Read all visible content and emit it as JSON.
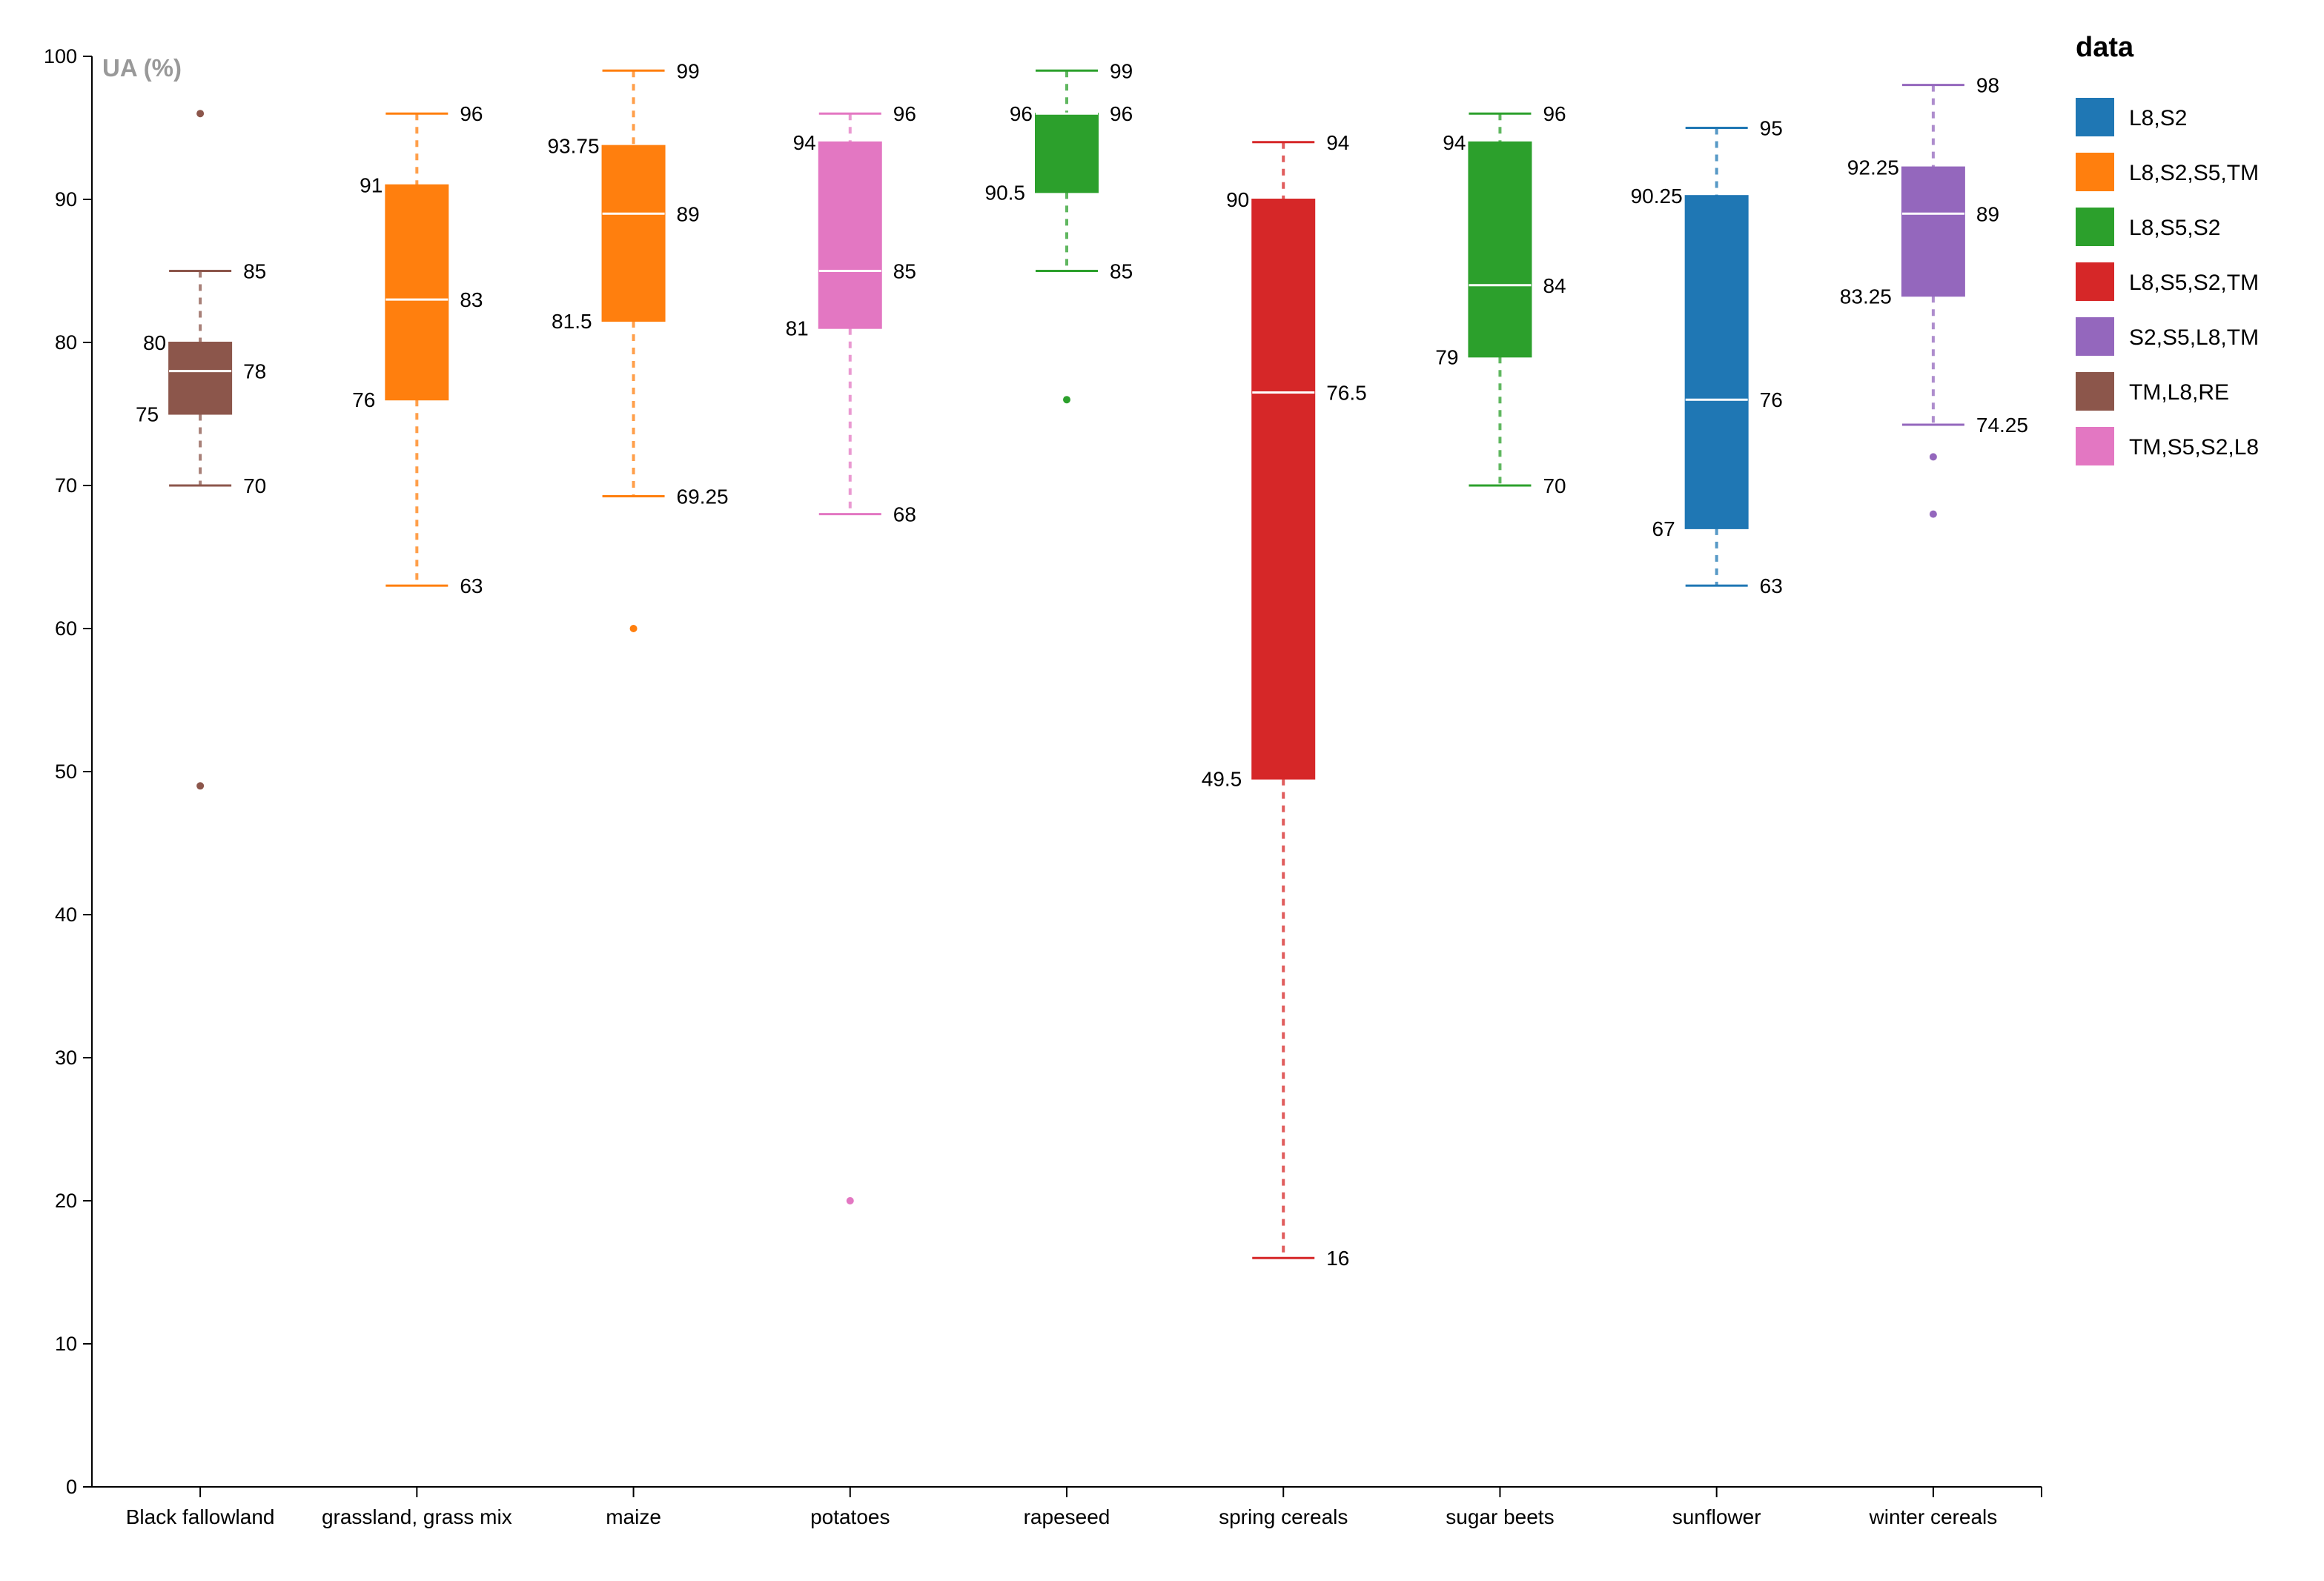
{
  "chart_data": {
    "type": "box",
    "ylabel": "UA (%)",
    "xlabel": "",
    "ylim": [
      0,
      100
    ],
    "yticks": [
      0,
      10,
      20,
      30,
      40,
      50,
      60,
      70,
      80,
      90,
      100
    ],
    "grid": false,
    "legend": {
      "title": "data",
      "position": "top-right",
      "entries": [
        {
          "label": "L8,S2",
          "color": "#1f77b4"
        },
        {
          "label": "L8,S2,S5,TM",
          "color": "#ff7f0e"
        },
        {
          "label": "L8,S5,S2",
          "color": "#2ca02c"
        },
        {
          "label": "L8,S5,S2,TM",
          "color": "#d62728"
        },
        {
          "label": "S2,S5,L8,TM",
          "color": "#9467bd"
        },
        {
          "label": "TM,L8,RE",
          "color": "#8c564b"
        },
        {
          "label": "TM,S5,S2,L8",
          "color": "#e377c2"
        }
      ]
    },
    "categories": [
      "Black fallowland",
      "grassland, grass mix",
      "maize",
      "potatoes",
      "rapeseed",
      "spring cereals",
      "sugar beets",
      "sunflower",
      "winter cereals"
    ],
    "boxes": [
      {
        "category": "Black fallowland",
        "series": "TM,L8,RE",
        "color": "#8c564b",
        "min": 70,
        "q1": 75,
        "median": 78,
        "q3": 80,
        "max": 85,
        "outliers": [
          96,
          49
        ],
        "labels": {
          "min": "70",
          "q1": "75",
          "median": "78",
          "q3": "80",
          "max": "85"
        }
      },
      {
        "category": "grassland, grass mix",
        "series": "L8,S2,S5,TM",
        "color": "#ff7f0e",
        "min": 63,
        "q1": 76,
        "median": 83,
        "q3": 91,
        "max": 96,
        "outliers": [],
        "labels": {
          "min": "63",
          "q1": "76",
          "median": "83",
          "q3": "91",
          "max": "96"
        }
      },
      {
        "category": "maize",
        "series": "L8,S2,S5,TM",
        "color": "#ff7f0e",
        "min": 69.25,
        "q1": 81.5,
        "median": 89,
        "q3": 93.75,
        "max": 99,
        "outliers": [
          60
        ],
        "labels": {
          "min": "69.25",
          "q1": "81.5",
          "median": "89",
          "q3": "93.75",
          "max": "99"
        }
      },
      {
        "category": "potatoes",
        "series": "TM,S5,S2,L8",
        "color": "#e377c2",
        "min": 68,
        "q1": 81,
        "median": 85,
        "q3": 94,
        "max": 96,
        "outliers": [
          20
        ],
        "labels": {
          "min": "68",
          "q1": "81",
          "median": "85",
          "q3": "94",
          "max": "96"
        }
      },
      {
        "category": "rapeseed",
        "series": "L8,S5,S2",
        "color": "#2ca02c",
        "min": 85,
        "q1": 90.5,
        "median": 96,
        "q3": 96,
        "max": 99,
        "outliers": [
          76
        ],
        "labels": {
          "min": "85",
          "q1": "90.5",
          "median": "96",
          "q3": "96",
          "max": "99"
        }
      },
      {
        "category": "spring cereals",
        "series": "L8,S5,S2,TM",
        "color": "#d62728",
        "min": 16,
        "q1": 49.5,
        "median": 76.5,
        "q3": 90,
        "max": 94,
        "outliers": [],
        "labels": {
          "min": "16",
          "q1": "49.5",
          "median": "76.5",
          "q3": "90",
          "max": "94"
        }
      },
      {
        "category": "sugar beets",
        "series": "L8,S5,S2",
        "color": "#2ca02c",
        "min": 70,
        "q1": 79,
        "median": 84,
        "q3": 94,
        "max": 96,
        "outliers": [],
        "labels": {
          "min": "70",
          "q1": "79",
          "median": "84",
          "q3": "94",
          "max": "96"
        }
      },
      {
        "category": "sunflower",
        "series": "L8,S2",
        "color": "#1f77b4",
        "min": 63,
        "q1": 67,
        "median": 76,
        "q3": 90.25,
        "max": 95,
        "outliers": [],
        "labels": {
          "min": "63",
          "q1": "67",
          "median": "76",
          "q3": "90.25",
          "max": "95"
        }
      },
      {
        "category": "winter cereals",
        "series": "S2,S5,L8,TM",
        "color": "#9467bd",
        "min": 74.25,
        "q1": 83.25,
        "median": 89,
        "q3": 92.25,
        "max": 98,
        "outliers": [
          72,
          68
        ],
        "labels": {
          "min": "74.25",
          "q1": "83.25",
          "median": "89",
          "q3": "92.25",
          "max": "98"
        }
      }
    ]
  }
}
